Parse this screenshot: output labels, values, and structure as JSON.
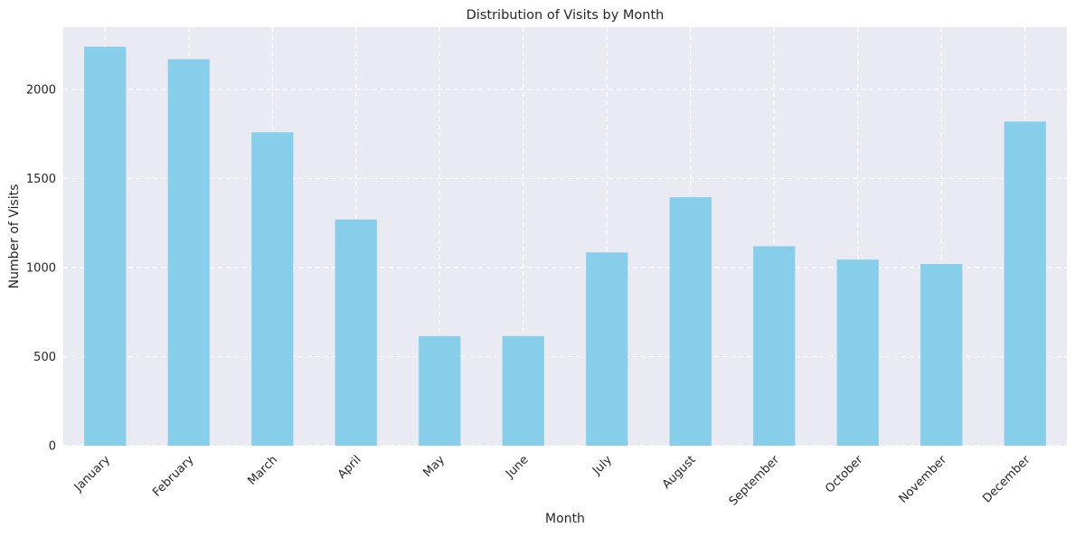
{
  "chart_data": {
    "type": "bar",
    "title": "Distribution of Visits by Month",
    "xlabel": "Month",
    "ylabel": "Number of Visits",
    "categories": [
      "January",
      "February",
      "March",
      "April",
      "May",
      "June",
      "July",
      "August",
      "September",
      "October",
      "November",
      "December"
    ],
    "values": [
      2240,
      2170,
      1760,
      1270,
      615,
      615,
      1085,
      1395,
      1120,
      1045,
      1020,
      1820
    ],
    "ylim": [
      0,
      2350
    ],
    "yticks": [
      0,
      500,
      1000,
      1500,
      2000
    ],
    "grid": true,
    "colors": {
      "bar": "#87CEEB",
      "background": "#EAEAF2",
      "grid": "#ffffff"
    }
  }
}
